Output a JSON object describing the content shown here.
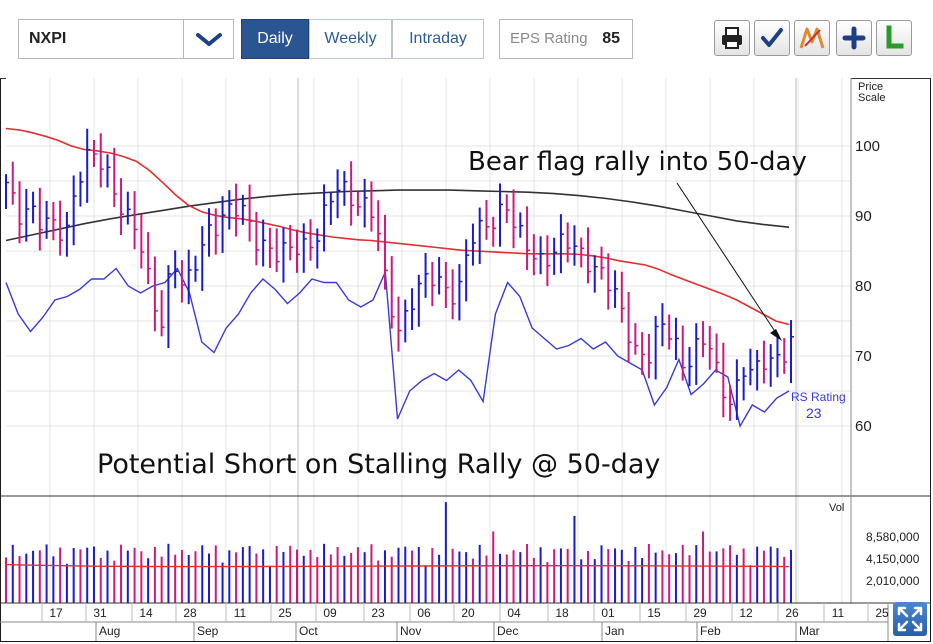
{
  "toolbar": {
    "symbol": "NXPI",
    "tabs": [
      "Daily",
      "Weekly",
      "Intraday"
    ],
    "eps_label": "EPS Rating",
    "eps_value": "85",
    "tools": [
      "print-icon",
      "checkmark-icon",
      "markup-icon",
      "plus-icon",
      "l-icon"
    ]
  },
  "colors": {
    "price_up": "#1a1ad0",
    "price_down": "#d0187a",
    "ma50": "#e03030",
    "ma200": "#333333",
    "rs_line": "#3a3ad8",
    "volume_avg": "#e03030",
    "accent": "#2a5592"
  },
  "chart_data": {
    "type": "candlestick",
    "y_axis_title": [
      "Price",
      "Scale"
    ],
    "y_ticks": [
      100,
      90,
      80,
      70,
      60
    ],
    "ylim": [
      56,
      106
    ],
    "volume_axis_title": "Vol",
    "volume_ticks": [
      "8,580,000",
      "4,150,000",
      "2,010,000"
    ],
    "x_tick_labels": [
      "17",
      "31",
      "14",
      "28",
      "11",
      "25",
      "09",
      "23",
      "06",
      "20",
      "04",
      "18",
      "01",
      "15",
      "29",
      "12",
      "26",
      "11",
      "25"
    ],
    "month_labels": [
      "Aug",
      "Sep",
      "Oct",
      "Nov",
      "Dec",
      "Jan",
      "Feb",
      "Mar"
    ],
    "annotations": [
      "Bear flag rally into 50-day",
      "Potential Short on Stalling Rally @ 50-day"
    ],
    "rs_label": "RS Rating",
    "rs_value": "23",
    "close_path": [
      94,
      90,
      92,
      89,
      88,
      87,
      96,
      99,
      97,
      94,
      91,
      88,
      80,
      74,
      85,
      79,
      83,
      88,
      90,
      91,
      90,
      87,
      86,
      84,
      85,
      86,
      87,
      91,
      94,
      93,
      92,
      90,
      79,
      74,
      78,
      80,
      81,
      80,
      79,
      86,
      88,
      90,
      92,
      87,
      85,
      84,
      85,
      86,
      85,
      84,
      82,
      79,
      75,
      71,
      70,
      74,
      73,
      69,
      71,
      72,
      66,
      64,
      68,
      67,
      70,
      70,
      72
    ],
    "ma50_path": [
      102.5,
      102.3,
      101.9,
      101.4,
      100.8,
      100.0,
      99.5,
      99.3,
      99.0,
      98.5,
      97.8,
      96.5,
      94.8,
      93.0,
      91.5,
      90.6,
      90.1,
      89.8,
      89.6,
      89.3,
      88.9,
      88.5,
      88.0,
      87.6,
      87.3,
      87.0,
      86.8,
      86.6,
      86.5,
      86.3,
      86.1,
      85.9,
      85.7,
      85.5,
      85.3,
      85.1,
      85.0,
      84.9,
      84.8,
      84.7,
      84.6,
      84.6,
      84.6,
      84.6,
      84.5,
      84.3,
      84.0,
      83.6,
      83.3,
      83.0,
      82.4,
      81.6,
      80.9,
      80.2,
      79.5,
      78.8,
      78.0,
      77.0,
      76.0,
      75.0,
      74.5
    ],
    "ma200_path": [
      86.5,
      87.3,
      88.1,
      88.9,
      89.6,
      90.2,
      90.8,
      91.4,
      91.9,
      92.4,
      92.8,
      93.1,
      93.3,
      93.5,
      93.6,
      93.7,
      93.7,
      93.7,
      93.6,
      93.5,
      93.4,
      93.2,
      92.9,
      92.5,
      92.0,
      91.4,
      90.7,
      90.0,
      89.3,
      88.8,
      88.4
    ],
    "rs_path": [
      80.5,
      76.0,
      73.5,
      75.5,
      78.0,
      78.5,
      79.5,
      81.0,
      81.0,
      82.5,
      80.0,
      79.0,
      80.0,
      80.5,
      82.5,
      79.0,
      72.0,
      70.5,
      74.0,
      76.0,
      79.0,
      81.0,
      79.5,
      77.5,
      79.0,
      81.0,
      80.5,
      80.5,
      78.0,
      77.0,
      78.0,
      82.0,
      61.0,
      65.0,
      66.5,
      67.5,
      66.5,
      68.0,
      66.5,
      63.5,
      76.0,
      80.5,
      78.5,
      74.0,
      72.5,
      71.0,
      71.5,
      72.5,
      71.0,
      72.0,
      70.0,
      69.0,
      68.0,
      63.0,
      65.5,
      69.5,
      64.5,
      66.0,
      68.0,
      67.0,
      60.0,
      63.0,
      62.0,
      64.0,
      65.0
    ],
    "volume_average": 4150000
  },
  "expand_icon": "expand-arrows-icon"
}
